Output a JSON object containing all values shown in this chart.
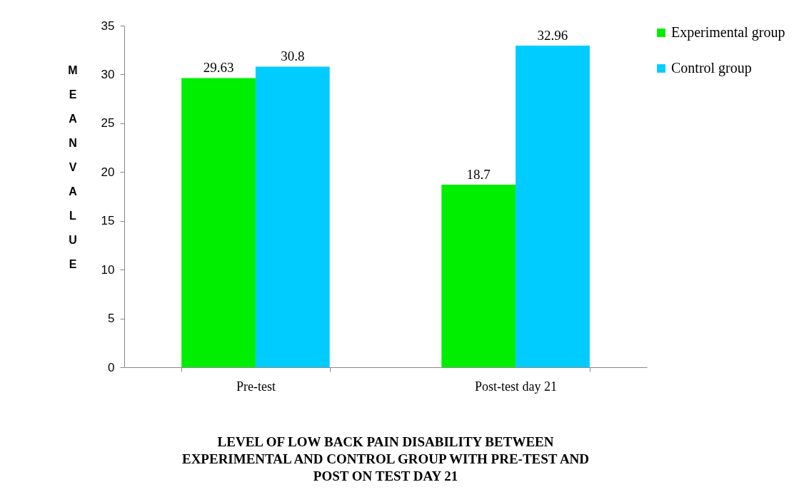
{
  "chart_data": {
    "type": "bar",
    "title": "LEVEL OF LOW BACK PAIN DISABILITY BETWEEN EXPERIMENTAL AND CONTROL GROUP WITH PRE-TEST AND POST ON TEST DAY 21",
    "ylabel": "MEAN VALUE",
    "categories": [
      "Pre-test",
      "Post-test day 21"
    ],
    "series": [
      {
        "name": "Experimental group",
        "color": "#00ee00",
        "values": [
          29.63,
          18.7
        ]
      },
      {
        "name": "Control group",
        "color": "#00ccff",
        "values": [
          30.8,
          32.96
        ]
      }
    ],
    "ylim": [
      0,
      35
    ],
    "yticks": [
      0,
      5,
      10,
      15,
      20,
      25,
      30,
      35
    ],
    "data_labels": true,
    "legend": "right"
  }
}
